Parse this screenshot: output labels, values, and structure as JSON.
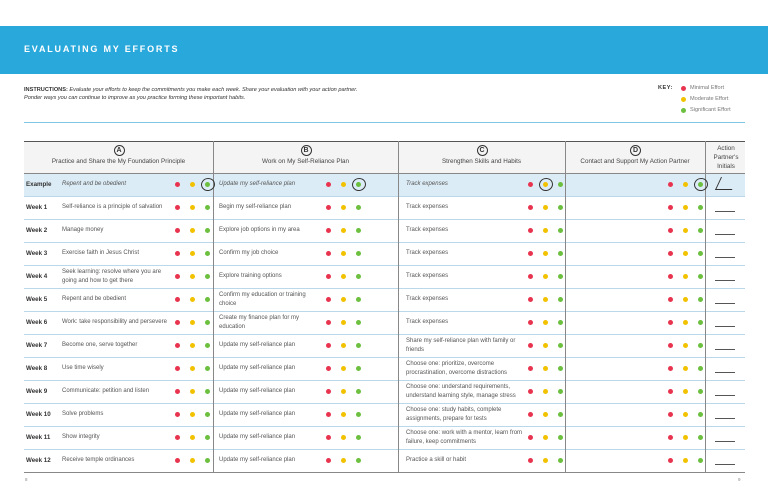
{
  "header": {
    "title": "EVALUATING MY EFFORTS"
  },
  "instructions": {
    "label": "INSTRUCTIONS:",
    "text": "Evaluate your efforts to keep the commitments you make each week. Share your evaluation with your action partner. Ponder ways you can continue to improve as you practice forming these important habits."
  },
  "key": {
    "label": "KEY:",
    "items": [
      "Minimal Effort",
      "Moderate Effort",
      "Significant Effort"
    ]
  },
  "table": {
    "columns": [
      {
        "letter": "A",
        "title": "Practice and Share the My Foundation Principle"
      },
      {
        "letter": "B",
        "title": "Work on My Self-Reliance Plan"
      },
      {
        "letter": "C",
        "title": "Strengthen Skills and Habits"
      },
      {
        "letter": "D",
        "title": "Contact and Support My Action Partner"
      }
    ],
    "initials_header": "Action Partner's Initials",
    "rows": [
      [
        "Example",
        "Repent and be obedient",
        "Update my self-reliance plan",
        "Track expenses"
      ],
      [
        "Week 1",
        "Self-reliance is a principle of salvation",
        "Begin my self-reliance plan",
        "Track expenses"
      ],
      [
        "Week 2",
        "Manage money",
        "Explore job options in my area",
        "Track expenses"
      ],
      [
        "Week 3",
        "Exercise faith in Jesus Christ",
        "Confirm my job choice",
        "Track expenses"
      ],
      [
        "Week 4",
        "Seek learning: resolve where you are going and how to get there",
        "Explore training options",
        "Track expenses"
      ],
      [
        "Week 5",
        "Repent and be obedient",
        "Confirm my education or training choice",
        "Track expenses"
      ],
      [
        "Week 6",
        "Work: take responsibility and persevere",
        "Create my finance plan for my education",
        "Track expenses"
      ],
      [
        "Week 7",
        "Become one, serve together",
        "Update my self-reliance plan",
        "Share my self-reliance plan with family or friends"
      ],
      [
        "Week 8",
        "Use time wisely",
        "Update my self-reliance plan",
        "Choose one: prioritize, overcome procrastination, overcome distractions"
      ],
      [
        "Week 9",
        "Communicate: petition and listen",
        "Update my self-reliance plan",
        "Choose one: understand requirements, understand learning style, manage stress"
      ],
      [
        "Week 10",
        "Solve problems",
        "Update my self-reliance plan",
        "Choose one: study habits, complete assignments, prepare for tests"
      ],
      [
        "Week 11",
        "Show integrity",
        "Update my self-reliance plan",
        "Choose one: work with a mentor, learn from failure, keep commitments"
      ],
      [
        "Week 12",
        "Receive temple ordinances",
        "Update my self-reliance plan",
        "Practice a skill or habit"
      ]
    ]
  },
  "footer": {
    "left_page": "8",
    "right_page": "9"
  }
}
